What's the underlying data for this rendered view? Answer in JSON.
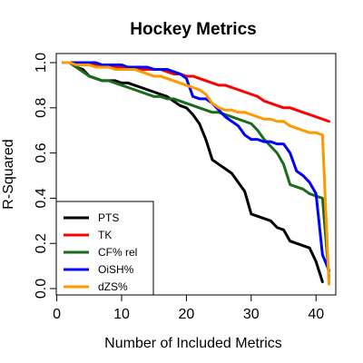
{
  "chart_data": {
    "type": "line",
    "title": "Hockey Metrics",
    "xlabel": "Number of Included Metrics",
    "ylabel": "R-Squared",
    "xlim": [
      0,
      42
    ],
    "ylim": [
      0,
      1
    ],
    "grid": false,
    "legend_position": "bottom-left",
    "x_ticks": [
      0,
      10,
      20,
      30,
      40
    ],
    "y_ticks": [
      0.0,
      0.2,
      0.4,
      0.6,
      0.8,
      1.0
    ],
    "x_tick_labels": [
      "0",
      "10",
      "20",
      "30",
      "40"
    ],
    "y_tick_labels": [
      "0.0",
      "0.2",
      "0.4",
      "0.6",
      "0.8",
      "1.0"
    ],
    "x": [
      1,
      2,
      3,
      4,
      5,
      6,
      7,
      8,
      9,
      10,
      11,
      12,
      13,
      14,
      15,
      16,
      17,
      18,
      19,
      20,
      21,
      22,
      23,
      24,
      25,
      26,
      27,
      28,
      29,
      30,
      31,
      32,
      33,
      34,
      35,
      36,
      37,
      38,
      39,
      40,
      41,
      42
    ],
    "series": [
      {
        "name": "PTS",
        "color": "#000000",
        "values": [
          1.0,
          1.0,
          0.98,
          0.97,
          0.94,
          0.93,
          0.92,
          0.92,
          0.92,
          0.91,
          0.91,
          0.9,
          0.89,
          0.88,
          0.87,
          0.86,
          0.85,
          0.83,
          0.81,
          0.8,
          0.77,
          0.73,
          0.66,
          0.57,
          0.55,
          0.53,
          0.51,
          0.47,
          0.43,
          0.33,
          0.32,
          0.31,
          0.3,
          0.27,
          0.26,
          0.21,
          0.2,
          0.19,
          0.18,
          0.12,
          0.03,
          null
        ]
      },
      {
        "name": "TK",
        "color": "#ff0000",
        "values": [
          1.0,
          1.0,
          1.0,
          0.99,
          0.99,
          0.99,
          0.98,
          0.98,
          0.98,
          0.98,
          0.97,
          0.97,
          0.97,
          0.97,
          0.97,
          0.97,
          0.96,
          0.95,
          0.95,
          0.94,
          0.94,
          0.93,
          0.92,
          0.91,
          0.9,
          0.9,
          0.89,
          0.88,
          0.87,
          0.86,
          0.85,
          0.83,
          0.82,
          0.81,
          0.8,
          0.8,
          0.79,
          0.78,
          0.77,
          0.76,
          0.75,
          0.74
        ]
      },
      {
        "name": "CF% rel",
        "color": "#1a6b1a",
        "values": [
          1.0,
          1.0,
          0.98,
          0.96,
          0.94,
          0.93,
          0.92,
          0.92,
          0.91,
          0.9,
          0.89,
          0.88,
          0.87,
          0.86,
          0.85,
          0.85,
          0.84,
          0.84,
          0.83,
          0.82,
          0.81,
          0.8,
          0.79,
          0.78,
          0.78,
          0.77,
          0.76,
          0.75,
          0.74,
          0.73,
          0.7,
          0.66,
          0.63,
          0.6,
          0.55,
          0.46,
          0.45,
          0.44,
          0.42,
          0.41,
          0.4,
          0.05
        ]
      },
      {
        "name": "OiSH%",
        "color": "#0000ff",
        "values": [
          1.0,
          1.0,
          1.0,
          1.0,
          1.0,
          1.0,
          0.99,
          0.99,
          0.99,
          0.99,
          0.98,
          0.98,
          0.98,
          0.98,
          0.97,
          0.97,
          0.97,
          0.96,
          0.95,
          0.93,
          0.85,
          0.84,
          0.84,
          0.82,
          0.79,
          0.76,
          0.74,
          0.72,
          0.68,
          0.66,
          0.66,
          0.65,
          0.65,
          0.64,
          0.64,
          0.6,
          0.52,
          0.5,
          0.47,
          0.42,
          0.15,
          0.08
        ]
      },
      {
        "name": "dZS%",
        "color": "#ff9900",
        "values": [
          1.0,
          1.0,
          0.99,
          0.99,
          0.99,
          0.98,
          0.98,
          0.98,
          0.97,
          0.97,
          0.97,
          0.97,
          0.96,
          0.95,
          0.94,
          0.94,
          0.93,
          0.92,
          0.91,
          0.9,
          0.89,
          0.88,
          0.86,
          0.82,
          0.8,
          0.79,
          0.79,
          0.78,
          0.78,
          0.77,
          0.76,
          0.75,
          0.75,
          0.74,
          0.74,
          0.72,
          0.71,
          0.7,
          0.69,
          0.69,
          0.68,
          0.02
        ]
      }
    ]
  }
}
